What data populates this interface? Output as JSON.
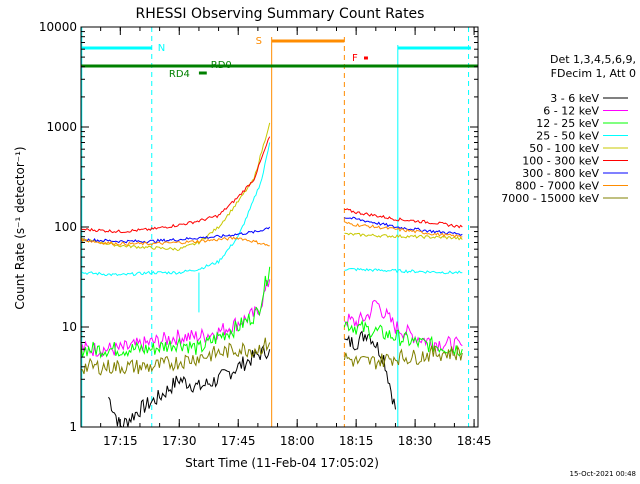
{
  "chart_data": {
    "type": "line",
    "title": "RHESSI Observing Summary Count Rates",
    "xlabel": "Start Time (11-Feb-04 17:05:02)",
    "ylabel": "Count Rate (s⁻¹ detector⁻¹)",
    "y_scale": "log",
    "ylim": [
      1,
      10000
    ],
    "xlim_minutes": [
      "17:05",
      "18:46"
    ],
    "x_ticks": [
      "17:15",
      "17:30",
      "17:45",
      "18:00",
      "18:15",
      "18:30",
      "18:45"
    ],
    "y_ticks": [
      "1",
      "10",
      "100",
      "1000",
      "10000"
    ],
    "legend_header": [
      "Det 1,3,4,5,6,9,",
      "FDecim 1, Att 0"
    ],
    "legend_position": "right",
    "footer_date": "15-Oct-2021 00:48",
    "annotations": [
      {
        "label": "N",
        "color": "#00ffff"
      },
      {
        "label": "S",
        "color": "#ff8c00"
      },
      {
        "label": "F",
        "color": "#ff0000"
      },
      {
        "label": "RD0",
        "color": "#008000"
      },
      {
        "label": "RD4",
        "color": "#008000"
      }
    ],
    "series": [
      {
        "name": "3 - 6 keV",
        "color": "#000000",
        "points": [
          [
            "17:12",
            2
          ],
          [
            "17:15",
            1
          ],
          [
            "17:20",
            1.5
          ],
          [
            "17:25",
            2
          ],
          [
            "17:30",
            3
          ],
          [
            "17:35",
            2.5
          ],
          [
            "17:40",
            3
          ],
          [
            "17:45",
            4
          ],
          [
            "17:49",
            5
          ],
          [
            "17:53",
            6
          ],
          [
            "18:12",
            7
          ],
          [
            "18:15",
            7
          ],
          [
            "18:18",
            9
          ],
          [
            "18:22",
            5
          ],
          [
            "18:25",
            1.5
          ]
        ]
      },
      {
        "name": "6 - 12 keV",
        "color": "#ff00ff",
        "points": [
          [
            "17:05",
            6
          ],
          [
            "17:15",
            6
          ],
          [
            "17:23",
            7
          ],
          [
            "17:30",
            8
          ],
          [
            "17:35",
            8
          ],
          [
            "17:40",
            9
          ],
          [
            "17:45",
            11
          ],
          [
            "17:50",
            14
          ],
          [
            "17:53",
            30
          ],
          [
            "18:12",
            12
          ],
          [
            "18:15",
            11
          ],
          [
            "18:18",
            13
          ],
          [
            "18:20",
            18
          ],
          [
            "18:22",
            14
          ],
          [
            "18:25",
            10
          ],
          [
            "18:30",
            8
          ],
          [
            "18:35",
            7
          ],
          [
            "18:42",
            6.5
          ]
        ]
      },
      {
        "name": "12 - 25 keV",
        "color": "#00ff00",
        "points": [
          [
            "17:05",
            6
          ],
          [
            "17:15",
            6
          ],
          [
            "17:23",
            6
          ],
          [
            "17:30",
            7
          ],
          [
            "17:35",
            6
          ],
          [
            "17:40",
            8
          ],
          [
            "17:45",
            10
          ],
          [
            "17:50",
            14
          ],
          [
            "17:53",
            40
          ],
          [
            "18:12",
            11
          ],
          [
            "18:15",
            10
          ],
          [
            "18:20",
            9
          ],
          [
            "18:25",
            8
          ],
          [
            "18:30",
            7
          ],
          [
            "18:35",
            6.5
          ],
          [
            "18:42",
            6
          ]
        ]
      },
      {
        "name": "25 - 50 keV",
        "color": "#00ffff",
        "points": [
          [
            "17:05",
            35
          ],
          [
            "17:15",
            33
          ],
          [
            "17:23",
            35
          ],
          [
            "17:30",
            35
          ],
          [
            "17:35",
            38
          ],
          [
            "17:40",
            45
          ],
          [
            "17:45",
            80
          ],
          [
            "17:48",
            150
          ],
          [
            "17:51",
            300
          ],
          [
            "17:53",
            700
          ],
          [
            "18:12",
            38
          ],
          [
            "18:20",
            37
          ],
          [
            "18:30",
            36
          ],
          [
            "18:40",
            35
          ],
          [
            "18:42",
            35
          ]
        ]
      },
      {
        "name": "50 - 100 keV",
        "color": "#c8c800",
        "points": [
          [
            "17:05",
            75
          ],
          [
            "17:10",
            70
          ],
          [
            "17:15",
            65
          ],
          [
            "17:23",
            62
          ],
          [
            "17:30",
            60
          ],
          [
            "17:35",
            70
          ],
          [
            "17:40",
            100
          ],
          [
            "17:45",
            180
          ],
          [
            "17:49",
            300
          ],
          [
            "17:53",
            1100
          ],
          [
            "18:12",
            85
          ],
          [
            "18:20",
            82
          ],
          [
            "18:30",
            80
          ],
          [
            "18:40",
            78
          ],
          [
            "18:42",
            75
          ]
        ]
      },
      {
        "name": "100 - 300 keV",
        "color": "#ff0000",
        "points": [
          [
            "17:05",
            95
          ],
          [
            "17:15",
            90
          ],
          [
            "17:23",
            95
          ],
          [
            "17:30",
            105
          ],
          [
            "17:35",
            115
          ],
          [
            "17:40",
            130
          ],
          [
            "17:45",
            200
          ],
          [
            "17:49",
            300
          ],
          [
            "17:53",
            800
          ],
          [
            "18:12",
            150
          ],
          [
            "18:15",
            140
          ],
          [
            "18:20",
            130
          ],
          [
            "18:25",
            120
          ],
          [
            "18:30",
            115
          ],
          [
            "18:35",
            110
          ],
          [
            "18:42",
            100
          ]
        ]
      },
      {
        "name": "300 - 800 keV",
        "color": "#0000ff",
        "points": [
          [
            "17:05",
            75
          ],
          [
            "17:15",
            72
          ],
          [
            "17:23",
            72
          ],
          [
            "17:30",
            75
          ],
          [
            "17:35",
            78
          ],
          [
            "17:40",
            80
          ],
          [
            "17:45",
            85
          ],
          [
            "17:50",
            90
          ],
          [
            "17:53",
            100
          ],
          [
            "18:12",
            125
          ],
          [
            "18:15",
            120
          ],
          [
            "18:20",
            110
          ],
          [
            "18:25",
            100
          ],
          [
            "18:30",
            95
          ],
          [
            "18:35",
            90
          ],
          [
            "18:42",
            85
          ]
        ]
      },
      {
        "name": "800 - 7000 keV",
        "color": "#ff8c00",
        "points": [
          [
            "17:05",
            75
          ],
          [
            "17:10",
            70
          ],
          [
            "17:15",
            68
          ],
          [
            "17:23",
            68
          ],
          [
            "17:30",
            70
          ],
          [
            "17:35",
            72
          ],
          [
            "17:40",
            75
          ],
          [
            "17:45",
            78
          ],
          [
            "17:50",
            70
          ],
          [
            "17:53",
            65
          ],
          [
            "18:12",
            110
          ],
          [
            "18:15",
            105
          ],
          [
            "18:20",
            100
          ],
          [
            "18:25",
            95
          ],
          [
            "18:30",
            90
          ],
          [
            "18:35",
            85
          ],
          [
            "18:42",
            80
          ]
        ]
      },
      {
        "name": "7000 - 15000 keV",
        "color": "#808000",
        "points": [
          [
            "17:05",
            4
          ],
          [
            "17:15",
            4
          ],
          [
            "17:23",
            4
          ],
          [
            "17:30",
            4.5
          ],
          [
            "17:35",
            5
          ],
          [
            "17:40",
            5.5
          ],
          [
            "17:45",
            6
          ],
          [
            "17:50",
            6
          ],
          [
            "17:53",
            7
          ],
          [
            "18:12",
            5
          ],
          [
            "18:15",
            4.5
          ],
          [
            "18:20",
            4.5
          ],
          [
            "18:25",
            5
          ],
          [
            "18:30",
            5
          ],
          [
            "18:35",
            5.5
          ],
          [
            "18:42",
            5.5
          ]
        ]
      }
    ]
  }
}
